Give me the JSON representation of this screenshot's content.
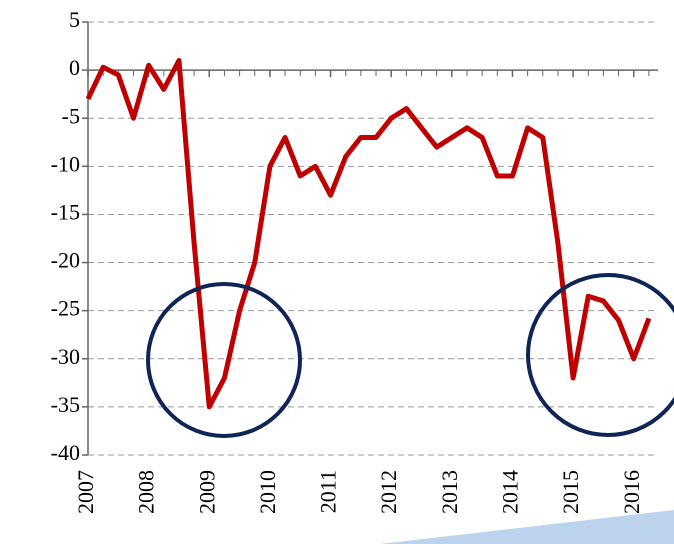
{
  "chart_data": {
    "type": "line",
    "x": [
      2007,
      2007.25,
      2007.5,
      2007.75,
      2008,
      2008.25,
      2008.5,
      2008.75,
      2009,
      2009.25,
      2009.5,
      2009.75,
      2010,
      2010.25,
      2010.5,
      2010.75,
      2011,
      2011.25,
      2011.5,
      2011.75,
      2012,
      2012.25,
      2012.5,
      2012.75,
      2013,
      2013.25,
      2013.5,
      2013.75,
      2014,
      2014.25,
      2014.5,
      2014.75,
      2015,
      2015.25,
      2015.5,
      2015.75,
      2016,
      2016.25
    ],
    "series": [
      {
        "color": "#c00000",
        "values": [
          -3,
          0.3,
          -0.5,
          -5,
          0.5,
          -2,
          1,
          -18,
          -35,
          -32,
          -25,
          -20,
          -10,
          -7,
          -11,
          -10,
          -13,
          -9,
          -7,
          -7,
          -5,
          -4,
          -6,
          -8,
          -7,
          -6,
          -7,
          -11,
          -11,
          -6,
          -7,
          -18,
          -32,
          -23.5,
          -24,
          -26,
          -30,
          -25.8
        ]
      }
    ],
    "xlim": [
      2007,
      2016.4
    ],
    "xticks": [
      2007,
      2008,
      2009,
      2010,
      2011,
      2012,
      2013,
      2014,
      2015,
      2016
    ],
    "ylim": [
      -40,
      5
    ],
    "yticks": [
      5,
      0,
      -5,
      -10,
      -15,
      -20,
      -25,
      -30,
      -35,
      -40
    ],
    "grid": true
  }
}
